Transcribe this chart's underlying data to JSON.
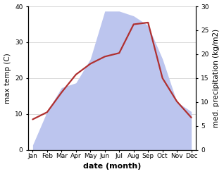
{
  "months": [
    "Jan",
    "Feb",
    "Mar",
    "Apr",
    "May",
    "Jun",
    "Jul",
    "Aug",
    "Sep",
    "Oct",
    "Nov",
    "Dec"
  ],
  "temperature": [
    8.5,
    10.5,
    16.0,
    21.0,
    24.0,
    26.0,
    27.0,
    35.0,
    35.5,
    20.0,
    13.5,
    9.0
  ],
  "precipitation": [
    1.0,
    8.0,
    13.0,
    14.0,
    19.0,
    29.0,
    29.0,
    28.0,
    26.0,
    19.0,
    10.0,
    8.0
  ],
  "temp_color": "#b03030",
  "precip_fill_color": "#bcc5ee",
  "precip_edge_color": "#bcc5ee",
  "ylim_temp": [
    0,
    40
  ],
  "ylim_precip": [
    0,
    30
  ],
  "temp_yticks": [
    0,
    10,
    20,
    30,
    40
  ],
  "precip_yticks": [
    0,
    5,
    10,
    15,
    20,
    25,
    30
  ],
  "ylabel_left": "max temp (C)",
  "ylabel_right": "med. precipitation (kg/m2)",
  "xlabel": "date (month)",
  "bg_color": "#ffffff",
  "label_fontsize": 7.5,
  "tick_fontsize": 6.5,
  "xlabel_fontsize": 8,
  "linewidth": 1.6
}
